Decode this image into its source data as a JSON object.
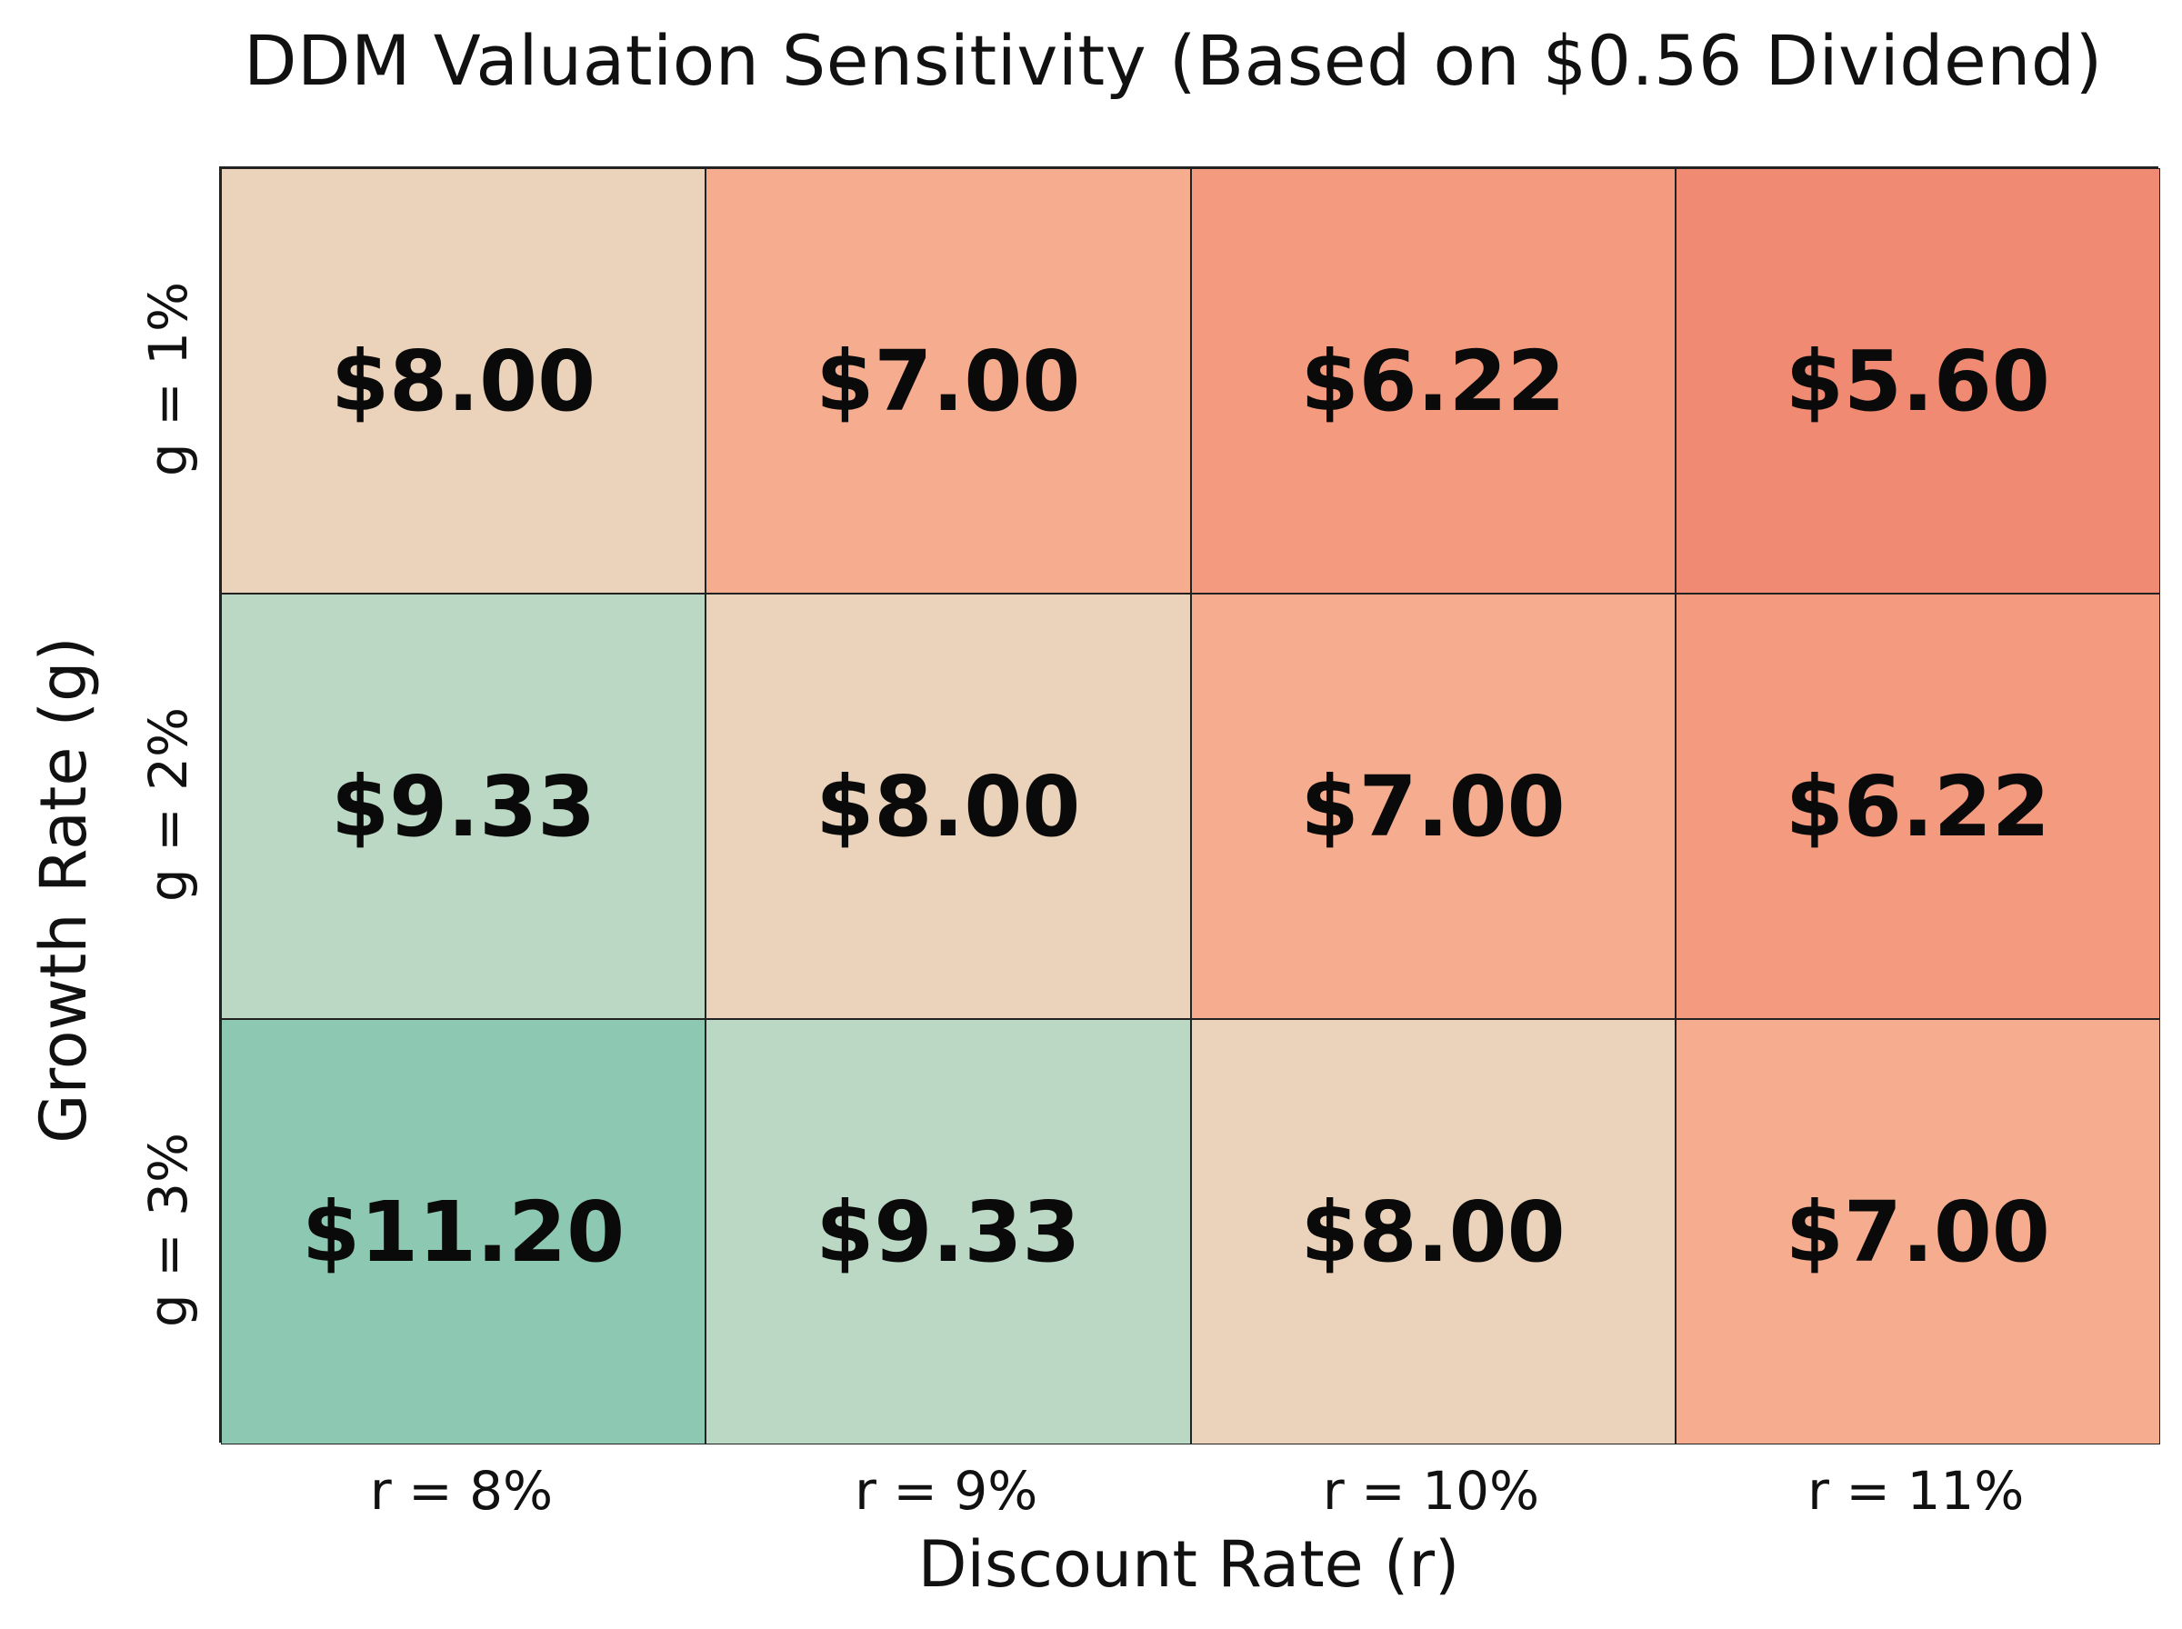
{
  "chart_data": {
    "type": "heatmap",
    "title": "DDM Valuation Sensitivity (Based on $0.56 Dividend)",
    "xlabel": "Discount Rate (r)",
    "ylabel": "Growth Rate (g)",
    "x_categories": [
      "r = 8%",
      "r = 9%",
      "r = 10%",
      "r = 11%"
    ],
    "y_categories": [
      "g = 1%",
      "g = 2%",
      "g = 3%"
    ],
    "values": [
      [
        8.0,
        7.0,
        6.22,
        5.6
      ],
      [
        9.33,
        8.0,
        7.0,
        6.22
      ],
      [
        11.2,
        9.33,
        8.0,
        7.0
      ]
    ],
    "cell_labels": [
      [
        "$8.00",
        "$7.00",
        "$6.22",
        "$5.60"
      ],
      [
        "$9.33",
        "$8.00",
        "$7.00",
        "$6.22"
      ],
      [
        "$11.20",
        "$9.33",
        "$8.00",
        "$7.00"
      ]
    ],
    "colormap": {
      "low": "#f08a72",
      "mid_low": "#f6ad8f",
      "mid": "#e8d8bf",
      "mid_high": "#b4d8c6",
      "high": "#8dc8b2"
    }
  }
}
